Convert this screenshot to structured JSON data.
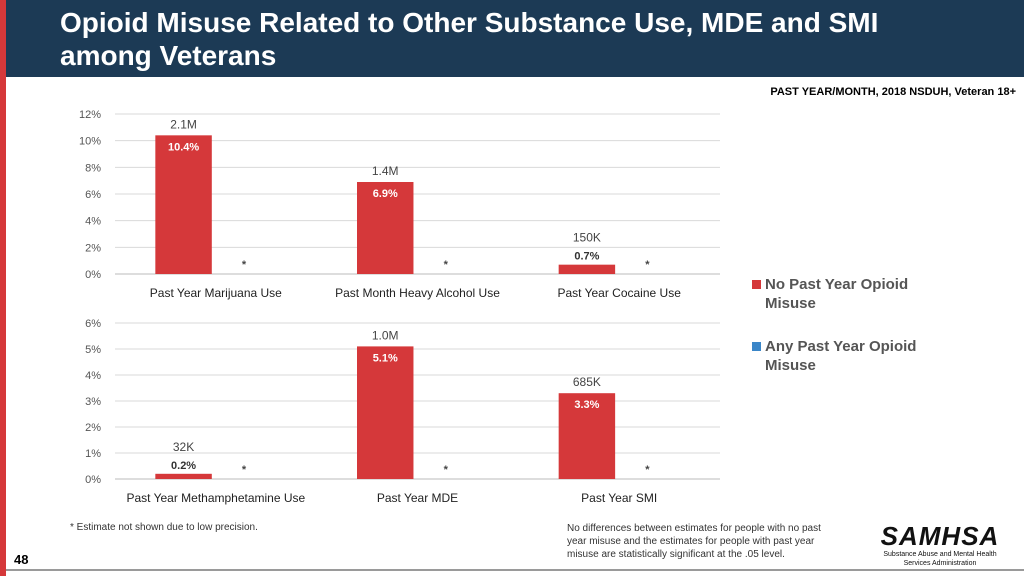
{
  "title": "Opioid Misuse Related to Other Substance Use, MDE and SMI among Veterans",
  "source": "PAST YEAR/MONTH, 2018 NSDUH, Veteran 18+",
  "page_number": "48",
  "footnote": "* Estimate not shown due to low precision.",
  "note_lines": [
    "No differences between estimates for people with no past",
    "year misuse and the estimates for people with past year",
    "misuse are statistically significant at the .05 level."
  ],
  "logo": {
    "name": "SAMHSA",
    "subtitle_lines": [
      "Substance Abuse and Mental Health",
      "Services Administration"
    ]
  },
  "legend": [
    {
      "label": "No Past Year Opioid Misuse",
      "color": "#d5383a"
    },
    {
      "label": "Any Past Year Opioid Misuse",
      "color": "#3a86c8"
    }
  ],
  "chart_data": [
    {
      "type": "bar",
      "categories": [
        "Past Year Marijuana Use",
        "Past Month Heavy Alcohol Use",
        "Past Year Cocaine Use"
      ],
      "series": [
        {
          "name": "No Past Year Opioid Misuse",
          "values": [
            10.4,
            6.9,
            0.7
          ],
          "labels": [
            "10.4%",
            "6.9%",
            "0.7%"
          ],
          "counts": [
            "2.1M",
            "1.4M",
            "150K"
          ]
        },
        {
          "name": "Any Past Year Opioid Misuse",
          "values": [
            null,
            null,
            null
          ],
          "labels": [
            "*",
            "*",
            "*"
          ]
        }
      ],
      "ylim": [
        0,
        12
      ],
      "yticks": [
        0,
        2,
        4,
        6,
        8,
        10,
        12
      ],
      "ytick_labels": [
        "0%",
        "2%",
        "4%",
        "6%",
        "8%",
        "10%",
        "12%"
      ]
    },
    {
      "type": "bar",
      "categories": [
        "Past Year Methamphetamine Use",
        "Past Year MDE",
        "Past Year SMI"
      ],
      "series": [
        {
          "name": "No Past Year Opioid Misuse",
          "values": [
            0.2,
            5.1,
            3.3
          ],
          "labels": [
            "0.2%",
            "5.1%",
            "3.3%"
          ],
          "counts": [
            "32K",
            "1.0M",
            "685K"
          ]
        },
        {
          "name": "Any Past Year Opioid Misuse",
          "values": [
            null,
            null,
            null
          ],
          "labels": [
            "*",
            "*",
            "*"
          ]
        }
      ],
      "ylim": [
        0,
        6
      ],
      "yticks": [
        0,
        1,
        2,
        3,
        4,
        5,
        6
      ],
      "ytick_labels": [
        "0%",
        "1%",
        "2%",
        "3%",
        "4%",
        "5%",
        "6%"
      ]
    }
  ]
}
